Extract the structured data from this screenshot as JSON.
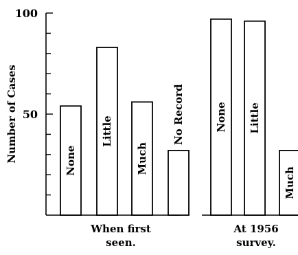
{
  "chart_data": {
    "type": "bar",
    "ylabel": "Number of Cases",
    "ylim": [
      0,
      100
    ],
    "yticks": [
      {
        "value": 100,
        "label": "100"
      },
      {
        "value": 50,
        "label": "50"
      }
    ],
    "minor_ticks": [
      10,
      20,
      30,
      40,
      60,
      70,
      80,
      90
    ],
    "grid": false,
    "groups": [
      {
        "label": "When first seen.",
        "label_lines": [
          "When first",
          "seen."
        ],
        "bars": [
          {
            "category": "None",
            "value": 54
          },
          {
            "category": "Little",
            "value": 83
          },
          {
            "category": "Much",
            "value": 56
          },
          {
            "category": "No Record",
            "value": 32
          }
        ]
      },
      {
        "label": "At 1956 survey.",
        "label_lines": [
          "At 1956",
          "survey."
        ],
        "bars": [
          {
            "category": "None",
            "value": 97
          },
          {
            "category": "Little",
            "value": 96
          },
          {
            "category": "Much",
            "value": 32
          }
        ]
      }
    ]
  }
}
